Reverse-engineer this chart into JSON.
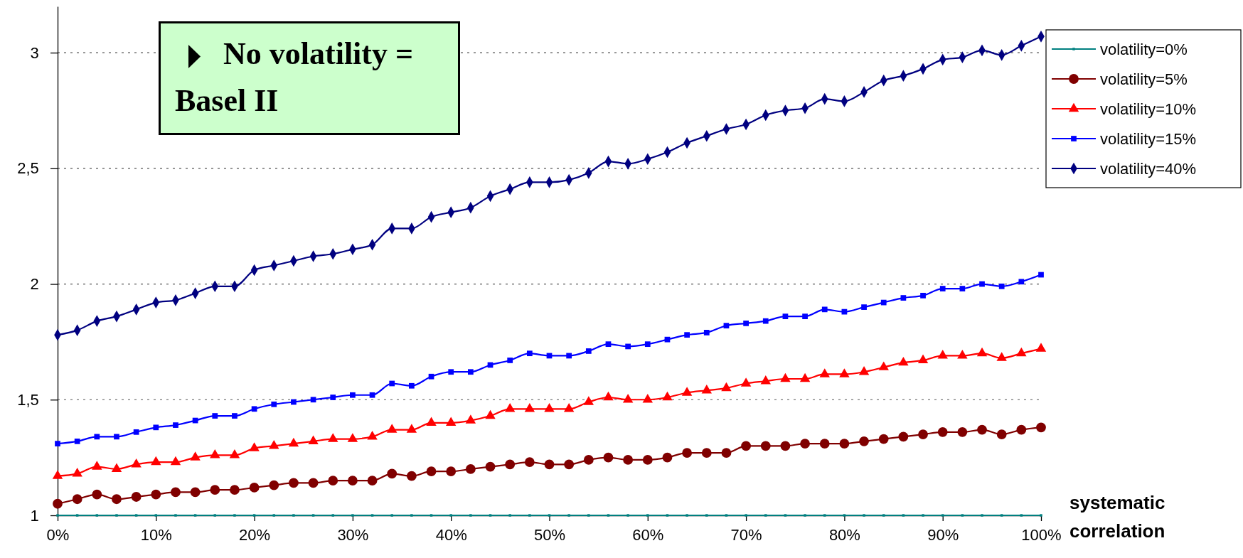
{
  "chart_data": {
    "type": "line",
    "xlabel": "systematic correlation",
    "x": [
      0,
      2,
      4,
      6,
      8,
      10,
      12,
      14,
      16,
      18,
      20,
      22,
      24,
      26,
      28,
      30,
      32,
      34,
      36,
      38,
      40,
      42,
      44,
      46,
      48,
      50,
      52,
      54,
      56,
      58,
      60,
      62,
      64,
      66,
      68,
      70,
      72,
      74,
      76,
      78,
      80,
      82,
      84,
      86,
      88,
      90,
      92,
      94,
      96,
      98,
      100
    ],
    "xlim": [
      0,
      100
    ],
    "xticks": [
      {
        "value": 0,
        "label": "0%"
      },
      {
        "value": 10,
        "label": "10%"
      },
      {
        "value": 20,
        "label": "20%"
      },
      {
        "value": 30,
        "label": "30%"
      },
      {
        "value": 40,
        "label": "40%"
      },
      {
        "value": 50,
        "label": "50%"
      },
      {
        "value": 60,
        "label": "60%"
      },
      {
        "value": 70,
        "label": "70%"
      },
      {
        "value": 80,
        "label": "80%"
      },
      {
        "value": 90,
        "label": "90%"
      },
      {
        "value": 100,
        "label": "100%"
      }
    ],
    "ylim": [
      1,
      3.2
    ],
    "yticks": [
      1,
      {
        "value": 1.5,
        "label": "1,5"
      },
      2,
      {
        "value": 2.5,
        "label": "2,5"
      },
      3
    ],
    "grid": "y",
    "legend": "top right",
    "line_style": "solid",
    "annotations": [
      "No volatility = Basel II"
    ],
    "series": [
      {
        "name": "volatility=0%",
        "color": "#008080",
        "marker": "square",
        "values": [
          1,
          1,
          1,
          1,
          1,
          1,
          1,
          1,
          1,
          1,
          1,
          1,
          1,
          1,
          1,
          1,
          1,
          1,
          1,
          1,
          1,
          1,
          1,
          1,
          1,
          1,
          1,
          1,
          1,
          1,
          1,
          1,
          1,
          1,
          1,
          1,
          1,
          1,
          1,
          1,
          1,
          1,
          1,
          1,
          1,
          1,
          1,
          1,
          1,
          1,
          1
        ]
      },
      {
        "name": "volatility=5%",
        "color": "#800000",
        "marker": "circle",
        "values": [
          1.05,
          1.07,
          1.09,
          1.07,
          1.08,
          1.09,
          1.1,
          1.1,
          1.11,
          1.11,
          1.12,
          1.13,
          1.14,
          1.14,
          1.15,
          1.15,
          1.15,
          1.18,
          1.17,
          1.19,
          1.19,
          1.2,
          1.21,
          1.22,
          1.23,
          1.22,
          1.22,
          1.24,
          1.25,
          1.24,
          1.24,
          1.25,
          1.27,
          1.27,
          1.27,
          1.3,
          1.3,
          1.3,
          1.31,
          1.31,
          1.31,
          1.32,
          1.33,
          1.34,
          1.35,
          1.36,
          1.36,
          1.37,
          1.35,
          1.37,
          1.38
        ]
      },
      {
        "name": "volatility=10%",
        "color": "#ff0000",
        "marker": "triangle",
        "values": [
          1.17,
          1.18,
          1.21,
          1.2,
          1.22,
          1.23,
          1.23,
          1.25,
          1.26,
          1.26,
          1.29,
          1.3,
          1.31,
          1.32,
          1.33,
          1.33,
          1.34,
          1.37,
          1.37,
          1.4,
          1.4,
          1.41,
          1.43,
          1.46,
          1.46,
          1.46,
          1.46,
          1.49,
          1.51,
          1.5,
          1.5,
          1.51,
          1.53,
          1.54,
          1.55,
          1.57,
          1.58,
          1.59,
          1.59,
          1.61,
          1.61,
          1.62,
          1.64,
          1.66,
          1.67,
          1.69,
          1.69,
          1.7,
          1.68,
          1.7,
          1.72
        ]
      },
      {
        "name": "volatility=15%",
        "color": "#0000ff",
        "marker": "square",
        "values": [
          1.31,
          1.32,
          1.34,
          1.34,
          1.36,
          1.38,
          1.39,
          1.41,
          1.43,
          1.43,
          1.46,
          1.48,
          1.49,
          1.5,
          1.51,
          1.52,
          1.52,
          1.57,
          1.56,
          1.6,
          1.62,
          1.62,
          1.65,
          1.67,
          1.7,
          1.69,
          1.69,
          1.71,
          1.74,
          1.73,
          1.74,
          1.76,
          1.78,
          1.79,
          1.82,
          1.83,
          1.84,
          1.86,
          1.86,
          1.89,
          1.88,
          1.9,
          1.92,
          1.94,
          1.95,
          1.98,
          1.98,
          2.0,
          1.99,
          2.01,
          2.04
        ]
      },
      {
        "name": "volatility=40%",
        "color": "#000080",
        "marker": "diamond",
        "values": [
          1.78,
          1.8,
          1.84,
          1.86,
          1.89,
          1.92,
          1.93,
          1.96,
          1.99,
          1.99,
          2.06,
          2.08,
          2.1,
          2.12,
          2.13,
          2.15,
          2.17,
          2.24,
          2.24,
          2.29,
          2.31,
          2.33,
          2.38,
          2.41,
          2.44,
          2.44,
          2.45,
          2.48,
          2.53,
          2.52,
          2.54,
          2.57,
          2.61,
          2.64,
          2.67,
          2.69,
          2.73,
          2.75,
          2.76,
          2.8,
          2.79,
          2.83,
          2.88,
          2.9,
          2.93,
          2.97,
          2.98,
          3.01,
          2.99,
          3.03,
          3.07
        ]
      }
    ]
  }
}
